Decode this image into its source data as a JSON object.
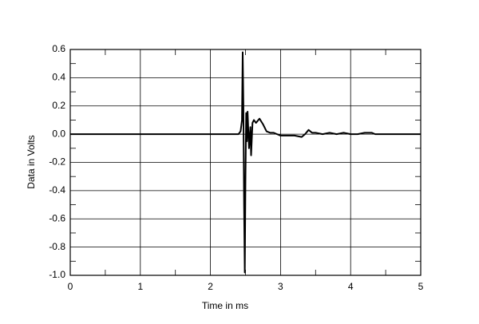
{
  "chart_data": {
    "type": "line",
    "x_label": "Time in ms",
    "y_label": "Data in Volts",
    "x": [
      0,
      2.4,
      2.43,
      2.45,
      2.46,
      2.47,
      2.48,
      2.49,
      2.5,
      2.51,
      2.52,
      2.53,
      2.55,
      2.57,
      2.58,
      2.6,
      2.62,
      2.65,
      2.7,
      2.75,
      2.8,
      2.85,
      2.9,
      2.95,
      3.0,
      3.1,
      3.2,
      3.3,
      3.35,
      3.4,
      3.45,
      3.5,
      3.6,
      3.7,
      3.8,
      3.9,
      4.0,
      4.1,
      4.2,
      4.3,
      4.35,
      4.4,
      4.5,
      5
    ],
    "values": [
      0,
      0,
      0.02,
      0.1,
      0.58,
      0.2,
      -0.5,
      -0.98,
      -0.3,
      0.15,
      -0.05,
      0.16,
      -0.1,
      0.05,
      -0.15,
      0.08,
      0.1,
      0.08,
      0.11,
      0.07,
      0.02,
      0.01,
      0.01,
      0.0,
      -0.01,
      -0.01,
      -0.01,
      -0.02,
      0.0,
      0.03,
      0.01,
      0.01,
      0.0,
      0.01,
      0.0,
      0.01,
      0.0,
      0.0,
      0.01,
      0.01,
      0.0,
      0.0,
      0.0,
      0
    ],
    "color": "#000000",
    "xlim": [
      0,
      5
    ],
    "xticks": [
      0,
      1,
      2,
      3,
      4,
      5
    ],
    "ylim": [
      -1,
      0.6
    ],
    "yticks": [
      0.6,
      0.4,
      0.2,
      {
        "value": 0,
        "label": "0.0"
      },
      -0.2,
      -0.4,
      -0.6,
      -0.8,
      {
        "value": -1,
        "label": "-1.0"
      }
    ],
    "grid": true
  }
}
